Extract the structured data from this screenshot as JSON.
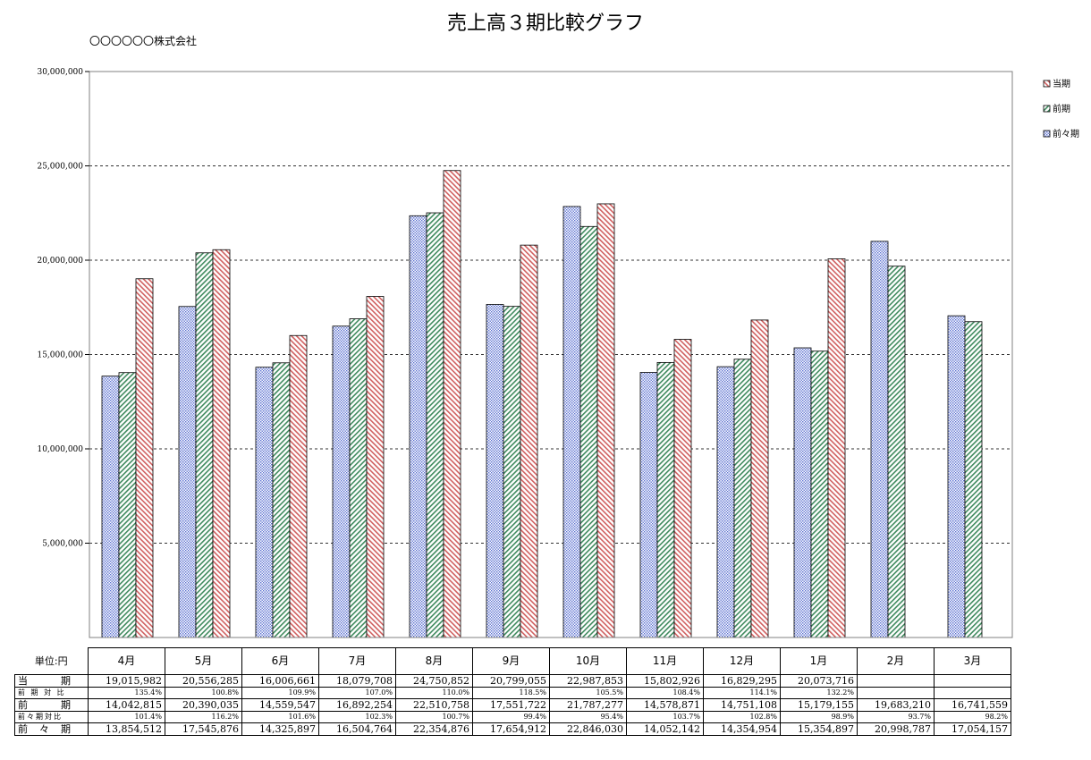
{
  "title": "売上高３期比較グラフ",
  "company": "〇〇〇〇〇〇株式会社",
  "colors": {
    "prev_prev": "#5a6fd0",
    "prev": "#3f8a5e",
    "current": "#d06060",
    "grid": "#333333",
    "frame": "#808080"
  },
  "chart_data": {
    "type": "bar",
    "title": "売上高３期比較グラフ",
    "categories": [
      "4月",
      "5月",
      "6月",
      "7月",
      "8月",
      "9月",
      "10月",
      "11月",
      "12月",
      "1月",
      "2月",
      "3月"
    ],
    "series": [
      {
        "name": "前々期",
        "values": [
          13854512,
          17545876,
          14325897,
          16504764,
          22354876,
          17654912,
          22846030,
          14052142,
          14354954,
          15354897,
          20998787,
          17054157
        ]
      },
      {
        "name": "前期",
        "values": [
          14042815,
          20390035,
          14559547,
          16892254,
          22510758,
          17551722,
          21787277,
          14578871,
          14751108,
          15179155,
          19683210,
          16741559
        ]
      },
      {
        "name": "当期",
        "values": [
          19015982,
          20556285,
          16006661,
          18079708,
          24750852,
          20799055,
          22987853,
          15802926,
          16829295,
          20073716,
          null,
          null
        ]
      }
    ],
    "ylim": [
      0,
      30000000
    ],
    "yticks": [
      "5,000,000",
      "10,000,000",
      "15,000,000",
      "20,000,000",
      "25,000,000",
      "30,000,000"
    ],
    "grid": true,
    "legend": "right"
  },
  "table": {
    "unit_label": "単位:円",
    "months": [
      "4月",
      "5月",
      "6月",
      "7月",
      "8月",
      "9月",
      "10月",
      "11月",
      "12月",
      "1月",
      "2月",
      "3月"
    ],
    "rows": [
      {
        "label": "当　　　期",
        "kind": "value",
        "values": [
          "19,015,982",
          "20,556,285",
          "16,006,661",
          "18,079,708",
          "24,750,852",
          "20,799,055",
          "22,987,853",
          "15,802,926",
          "16,829,295",
          "20,073,716",
          "",
          ""
        ]
      },
      {
        "label": "前 期 対 比",
        "kind": "ratio",
        "values": [
          "135.4%",
          "100.8%",
          "109.9%",
          "107.0%",
          "110.0%",
          "118.5%",
          "105.5%",
          "108.4%",
          "114.1%",
          "132.2%",
          "",
          ""
        ]
      },
      {
        "label": "前　　　期",
        "kind": "value",
        "values": [
          "14,042,815",
          "20,390,035",
          "14,559,547",
          "16,892,254",
          "22,510,758",
          "17,551,722",
          "21,787,277",
          "14,578,871",
          "14,751,108",
          "15,179,155",
          "19,683,210",
          "16,741,559"
        ]
      },
      {
        "label": "前々期対比",
        "kind": "ratio",
        "values": [
          "101.4%",
          "116.2%",
          "101.6%",
          "102.3%",
          "100.7%",
          "99.4%",
          "95.4%",
          "103.7%",
          "102.8%",
          "98.9%",
          "93.7%",
          "98.2%"
        ]
      },
      {
        "label": "前　々　期",
        "kind": "value",
        "values": [
          "13,854,512",
          "17,545,876",
          "14,325,897",
          "16,504,764",
          "22,354,876",
          "17,654,912",
          "22,846,030",
          "14,052,142",
          "14,354,954",
          "15,354,897",
          "20,998,787",
          "17,054,157"
        ]
      }
    ]
  }
}
